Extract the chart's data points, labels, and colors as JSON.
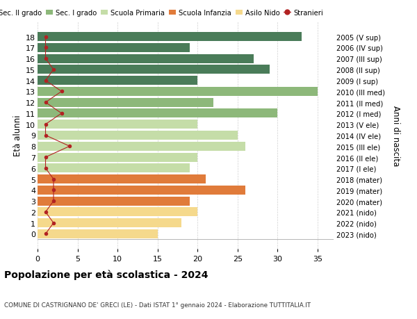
{
  "ages": [
    18,
    17,
    16,
    15,
    14,
    13,
    12,
    11,
    10,
    9,
    8,
    7,
    6,
    5,
    4,
    3,
    2,
    1,
    0
  ],
  "years": [
    "2005 (V sup)",
    "2006 (IV sup)",
    "2007 (III sup)",
    "2008 (II sup)",
    "2009 (I sup)",
    "2010 (III med)",
    "2011 (II med)",
    "2012 (I med)",
    "2013 (V ele)",
    "2014 (IV ele)",
    "2015 (III ele)",
    "2016 (II ele)",
    "2017 (I ele)",
    "2018 (mater)",
    "2019 (mater)",
    "2020 (mater)",
    "2021 (nido)",
    "2022 (nido)",
    "2023 (nido)"
  ],
  "values": [
    33,
    19,
    27,
    29,
    20,
    35,
    22,
    30,
    20,
    25,
    26,
    20,
    19,
    21,
    26,
    19,
    20,
    18,
    15
  ],
  "stranieri": [
    1,
    1,
    1,
    2,
    1,
    3,
    1,
    3,
    1,
    1,
    4,
    1,
    1,
    2,
    2,
    2,
    1,
    2,
    1
  ],
  "bar_colors": [
    "#4a7c59",
    "#4a7c59",
    "#4a7c59",
    "#4a7c59",
    "#4a7c59",
    "#8db87a",
    "#8db87a",
    "#8db87a",
    "#c5dda8",
    "#c5dda8",
    "#c5dda8",
    "#c5dda8",
    "#c5dda8",
    "#e07b3a",
    "#e07b3a",
    "#e07b3a",
    "#f5d98c",
    "#f5d98c",
    "#f5d98c"
  ],
  "legend_colors": [
    "#4a7c59",
    "#8db87a",
    "#c5dda8",
    "#e07b3a",
    "#f5d98c",
    "#b22222"
  ],
  "legend_labels": [
    "Sec. II grado",
    "Sec. I grado",
    "Scuola Primaria",
    "Scuola Infanzia",
    "Asilo Nido",
    "Stranieri"
  ],
  "ylabel_left": "Età alunni",
  "ylabel_right": "Anni di nascita",
  "title": "Popolazione per età scolastica - 2024",
  "subtitle": "COMUNE DI CASTRIGNANO DE' GRECI (LE) - Dati ISTAT 1° gennaio 2024 - Elaborazione TUTTITALIA.IT",
  "xlim": [
    0,
    37
  ],
  "xticks": [
    0,
    5,
    10,
    15,
    20,
    25,
    30,
    35
  ],
  "background_color": "#ffffff",
  "grid_color": "#d0d0d0",
  "stranieri_color": "#b22222"
}
